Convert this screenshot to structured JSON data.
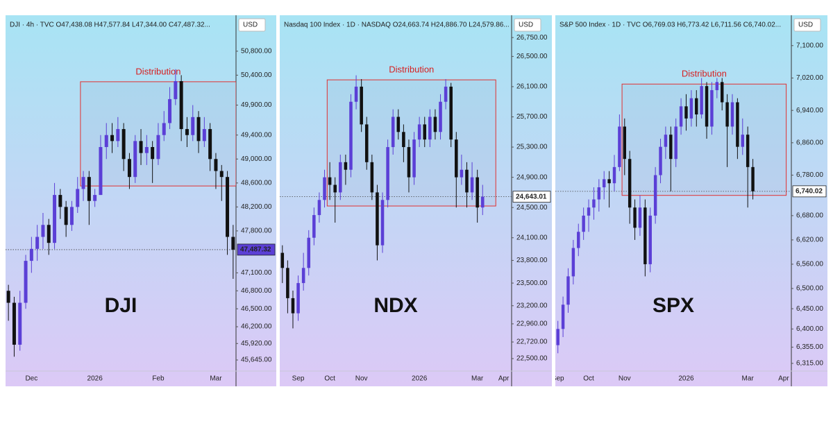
{
  "chart_data": [
    {
      "type": "candlestick",
      "header": "DJI · 4h · TVC  O47,438.08  H47,577.84  L47,344.00  C47,487.32...",
      "currency": "USD",
      "watermark": "DJI",
      "categories": [
        null,
        null,
        null,
        null,
        "Dec",
        null,
        null,
        null,
        null,
        null,
        null,
        null,
        null,
        null,
        null,
        "2026",
        null,
        null,
        null,
        null,
        null,
        null,
        null,
        null,
        null,
        null,
        "Feb",
        null,
        null,
        null,
        null,
        null,
        null,
        null,
        null,
        null,
        "Mar",
        null,
        null,
        null
      ],
      "ohlc": [
        [
          46800,
          46900,
          46300,
          46600
        ],
        [
          46600,
          46700,
          45700,
          45900
        ],
        [
          45900,
          46800,
          45800,
          46600
        ],
        [
          46600,
          47400,
          46500,
          47300
        ],
        [
          47300,
          47700,
          47100,
          47500
        ],
        [
          47500,
          47900,
          47300,
          47700
        ],
        [
          47700,
          48100,
          47500,
          47900
        ],
        [
          47900,
          48000,
          47400,
          47600
        ],
        [
          47600,
          48600,
          47500,
          48400
        ],
        [
          48400,
          48500,
          48000,
          48200
        ],
        [
          48200,
          48300,
          47700,
          47900
        ],
        [
          47900,
          48300,
          47800,
          48200
        ],
        [
          48200,
          48700,
          48100,
          48500
        ],
        [
          48500,
          48800,
          48300,
          48700
        ],
        [
          48700,
          48800,
          47900,
          48300
        ],
        [
          48300,
          48500,
          48200,
          48400
        ],
        [
          48400,
          49400,
          48400,
          49200
        ],
        [
          49200,
          49600,
          49000,
          49400
        ],
        [
          49400,
          49600,
          49100,
          49300
        ],
        [
          49300,
          49700,
          49200,
          49500
        ],
        [
          49500,
          49600,
          48800,
          49000
        ],
        [
          49000,
          49100,
          48500,
          48700
        ],
        [
          48700,
          49400,
          48600,
          49300
        ],
        [
          49300,
          49500,
          48900,
          49100
        ],
        [
          49100,
          49400,
          48900,
          49200
        ],
        [
          49200,
          49300,
          48600,
          49000
        ],
        [
          49000,
          49600,
          48900,
          49400
        ],
        [
          49400,
          49800,
          49300,
          49600
        ],
        [
          49600,
          50200,
          49500,
          50000
        ],
        [
          50000,
          50500,
          49900,
          50300
        ],
        [
          50300,
          50400,
          49300,
          49500
        ],
        [
          49500,
          49700,
          49200,
          49400
        ],
        [
          49400,
          49900,
          49300,
          49700
        ],
        [
          49700,
          49800,
          49100,
          49300
        ],
        [
          49300,
          49700,
          49200,
          49500
        ],
        [
          49500,
          49600,
          48800,
          49000
        ],
        [
          49000,
          49100,
          48500,
          48800
        ],
        [
          48800,
          48900,
          48300,
          48700
        ],
        [
          48700,
          48800,
          47400,
          47700
        ],
        [
          47700,
          47900,
          47000,
          47487.32
        ]
      ],
      "up_color": "#5b3fd6",
      "down_color": "#111111",
      "ylim": [
        45460,
        51400
      ],
      "yticks": [
        {
          "value": 50800,
          "label": "50,800.00"
        },
        {
          "value": 50400,
          "label": "50,400.00"
        },
        {
          "value": 49900,
          "label": "49,900.00"
        },
        {
          "value": 49400,
          "label": "49,400.00"
        },
        {
          "value": 49000,
          "label": "49,000.00"
        },
        {
          "value": 48600,
          "label": "48,600.00"
        },
        {
          "value": 48200,
          "label": "48,200.00"
        },
        {
          "value": 47800,
          "label": "47,800.00"
        },
        {
          "value": 47100,
          "label": "47,100.00"
        },
        {
          "value": 46800,
          "label": "46,800.00"
        },
        {
          "value": 46500,
          "label": "46,500.00"
        },
        {
          "value": 46200,
          "label": "46,200.00"
        },
        {
          "value": 45920,
          "label": "45,920.00"
        },
        {
          "value": 45645,
          "label": "45,645.00"
        }
      ],
      "last": {
        "value": 47487.32,
        "label": "47,487.32"
      },
      "last_color": "#5b3fd6",
      "last_text_color": "#ffffff",
      "annotation": {
        "text": "Distribution",
        "from": 13,
        "to": 39,
        "ylim": [
          48550,
          50290
        ]
      }
    },
    {
      "type": "candlestick",
      "header": "Nasdaq 100 Index · 1D · NASDAQ  O24,663.74  H24,886.70  L24,579.86...",
      "currency": "USD",
      "watermark": "NDX",
      "categories": [
        null,
        null,
        null,
        "Sep",
        null,
        null,
        null,
        null,
        null,
        "Oct",
        null,
        null,
        null,
        null,
        null,
        "Nov",
        null,
        null,
        null,
        null,
        null,
        null,
        null,
        null,
        null,
        null,
        "2026",
        null,
        null,
        null,
        null,
        null,
        null,
        null,
        null,
        null,
        null,
        "Mar",
        null,
        null,
        null,
        null,
        "Apr",
        null
      ],
      "ohlc": [
        [
          23900,
          24000,
          23500,
          23700
        ],
        [
          23700,
          23800,
          23100,
          23300
        ],
        [
          23300,
          23400,
          22900,
          23100
        ],
        [
          23100,
          23600,
          23000,
          23500
        ],
        [
          23500,
          23900,
          23400,
          23700
        ],
        [
          23700,
          24200,
          23600,
          24100
        ],
        [
          24100,
          24500,
          24000,
          24400
        ],
        [
          24400,
          24700,
          24300,
          24600
        ],
        [
          24600,
          25000,
          24500,
          24900
        ],
        [
          24900,
          25100,
          24600,
          24800
        ],
        [
          24800,
          24900,
          24300,
          24700
        ],
        [
          24700,
          25200,
          24600,
          25100
        ],
        [
          25100,
          25200,
          24800,
          25000
        ],
        [
          25000,
          26000,
          24900,
          25900
        ],
        [
          25900,
          26250,
          25800,
          26100
        ],
        [
          26100,
          26200,
          25500,
          25600
        ],
        [
          25600,
          25700,
          25000,
          25100
        ],
        [
          25100,
          25200,
          24600,
          24700
        ],
        [
          24700,
          24800,
          23800,
          24000
        ],
        [
          24000,
          24700,
          23900,
          24600
        ],
        [
          24600,
          25400,
          24500,
          25300
        ],
        [
          25300,
          25800,
          25200,
          25700
        ],
        [
          25700,
          25800,
          25400,
          25500
        ],
        [
          25500,
          25600,
          25100,
          25300
        ],
        [
          25300,
          25400,
          24700,
          24900
        ],
        [
          24900,
          25500,
          24800,
          25400
        ],
        [
          25400,
          25700,
          25300,
          25600
        ],
        [
          25600,
          25700,
          25300,
          25400
        ],
        [
          25400,
          25800,
          25300,
          25700
        ],
        [
          25700,
          25800,
          25400,
          25500
        ],
        [
          25500,
          26000,
          25400,
          25900
        ],
        [
          25900,
          26200,
          25800,
          26100
        ],
        [
          26100,
          26150,
          25300,
          25400
        ],
        [
          25400,
          25500,
          24500,
          24900
        ],
        [
          24900,
          25200,
          24800,
          25000
        ],
        [
          25000,
          25100,
          24500,
          24700
        ],
        [
          24700,
          25100,
          24600,
          24900
        ],
        [
          24900,
          25000,
          24300,
          24500
        ],
        [
          24500,
          24800,
          24400,
          24643.01
        ],
        null,
        null,
        null,
        null,
        null
      ],
      "up_color": "#5b3fd6",
      "down_color": "#111111",
      "ylim": [
        22335,
        27045
      ],
      "yticks": [
        {
          "value": 26750,
          "label": "26,750.00"
        },
        {
          "value": 26500,
          "label": "26,500.00"
        },
        {
          "value": 26100,
          "label": "26,100.00"
        },
        {
          "value": 25700,
          "label": "25,700.00"
        },
        {
          "value": 25300,
          "label": "25,300.00"
        },
        {
          "value": 24900,
          "label": "24,900.00"
        },
        {
          "value": 24500,
          "label": "24,500.00"
        },
        {
          "value": 24100,
          "label": "24,100.00"
        },
        {
          "value": 23800,
          "label": "23,800.00"
        },
        {
          "value": 23500,
          "label": "23,500.00"
        },
        {
          "value": 23200,
          "label": "23,200.00"
        },
        {
          "value": 22960,
          "label": "22,960.00"
        },
        {
          "value": 22720,
          "label": "22,720.00"
        },
        {
          "value": 22500,
          "label": "22,500.00"
        }
      ],
      "last": {
        "value": 24643.01,
        "label": "24,643.01"
      },
      "last_color": "#ffffff",
      "last_text_color": "#000000",
      "annotation": {
        "text": "Distribution",
        "from": 9,
        "to": 40,
        "ylim": [
          24520,
          26190
        ]
      }
    },
    {
      "type": "candlestick",
      "header": "S&P 500 Index · 1D · TVC  O6,769.03  H6,773.42  L6,711.56  C6,740.02...",
      "currency": "USD",
      "watermark": "SPX",
      "categories": [
        "Sep",
        null,
        null,
        null,
        null,
        null,
        "Oct",
        null,
        null,
        null,
        null,
        null,
        null,
        "Nov",
        null,
        null,
        null,
        null,
        null,
        null,
        null,
        null,
        null,
        null,
        null,
        "2026",
        null,
        null,
        null,
        null,
        null,
        null,
        null,
        null,
        null,
        null,
        null,
        "Mar",
        null,
        null,
        null,
        null,
        null,
        null,
        "Apr",
        null
      ],
      "ohlc": [
        [
          6360,
          6420,
          6340,
          6400
        ],
        [
          6400,
          6480,
          6380,
          6460
        ],
        [
          6460,
          6550,
          6440,
          6530
        ],
        [
          6530,
          6620,
          6510,
          6600
        ],
        [
          6600,
          6660,
          6580,
          6640
        ],
        [
          6640,
          6700,
          6620,
          6680
        ],
        [
          6680,
          6720,
          6640,
          6700
        ],
        [
          6700,
          6750,
          6670,
          6720
        ],
        [
          6720,
          6770,
          6690,
          6750
        ],
        [
          6750,
          6790,
          6720,
          6770
        ],
        [
          6770,
          6790,
          6700,
          6760
        ],
        [
          6760,
          6830,
          6740,
          6800
        ],
        [
          6800,
          6930,
          6790,
          6900
        ],
        [
          6900,
          6920,
          6780,
          6820
        ],
        [
          6820,
          6840,
          6660,
          6700
        ],
        [
          6700,
          6720,
          6620,
          6650
        ],
        [
          6650,
          6730,
          6630,
          6700
        ],
        [
          6700,
          6720,
          6530,
          6560
        ],
        [
          6560,
          6700,
          6540,
          6680
        ],
        [
          6680,
          6800,
          6660,
          6780
        ],
        [
          6780,
          6870,
          6760,
          6850
        ],
        [
          6850,
          6900,
          6820,
          6880
        ],
        [
          6880,
          6900,
          6740,
          6820
        ],
        [
          6820,
          6920,
          6800,
          6900
        ],
        [
          6900,
          6970,
          6880,
          6950
        ],
        [
          6950,
          6980,
          6890,
          6920
        ],
        [
          6920,
          6990,
          6900,
          6970
        ],
        [
          6970,
          6990,
          6900,
          6930
        ],
        [
          6930,
          7020,
          6920,
          7000
        ],
        [
          7000,
          7010,
          6870,
          6900
        ],
        [
          6900,
          7010,
          6880,
          6990
        ],
        [
          6990,
          7020,
          6970,
          7010
        ],
        [
          7010,
          7020,
          6940,
          6960
        ],
        [
          6960,
          6980,
          6800,
          6900
        ],
        [
          6900,
          6980,
          6880,
          6960
        ],
        [
          6960,
          6970,
          6820,
          6850
        ],
        [
          6850,
          6920,
          6830,
          6880
        ],
        [
          6880,
          6900,
          6700,
          6800
        ],
        [
          6800,
          6820,
          6720,
          6740.02
        ],
        null,
        null,
        null,
        null,
        null,
        null,
        null
      ],
      "up_color": "#5b3fd6",
      "down_color": "#111111",
      "ylim": [
        6296,
        7175
      ],
      "yticks": [
        {
          "value": 7100,
          "label": "7,100.00"
        },
        {
          "value": 7020,
          "label": "7,020.00"
        },
        {
          "value": 6940,
          "label": "6,940.00"
        },
        {
          "value": 6860,
          "label": "6,860.00"
        },
        {
          "value": 6780,
          "label": "6,780.00"
        },
        {
          "value": 6680,
          "label": "6,680.00"
        },
        {
          "value": 6620,
          "label": "6,620.00"
        },
        {
          "value": 6560,
          "label": "6,560.00"
        },
        {
          "value": 6500,
          "label": "6,500.00"
        },
        {
          "value": 6450,
          "label": "6,450.00"
        },
        {
          "value": 6400,
          "label": "6,400.00"
        },
        {
          "value": 6355,
          "label": "6,355.00"
        },
        {
          "value": 6315,
          "label": "6,315.00"
        }
      ],
      "last": {
        "value": 6740.02,
        "label": "6,740.02"
      },
      "last_color": "#ffffff",
      "last_text_color": "#000000",
      "annotation": {
        "text": "Distribution",
        "from": 13,
        "to": 44,
        "ylim": [
          6730,
          7005
        ]
      }
    }
  ]
}
